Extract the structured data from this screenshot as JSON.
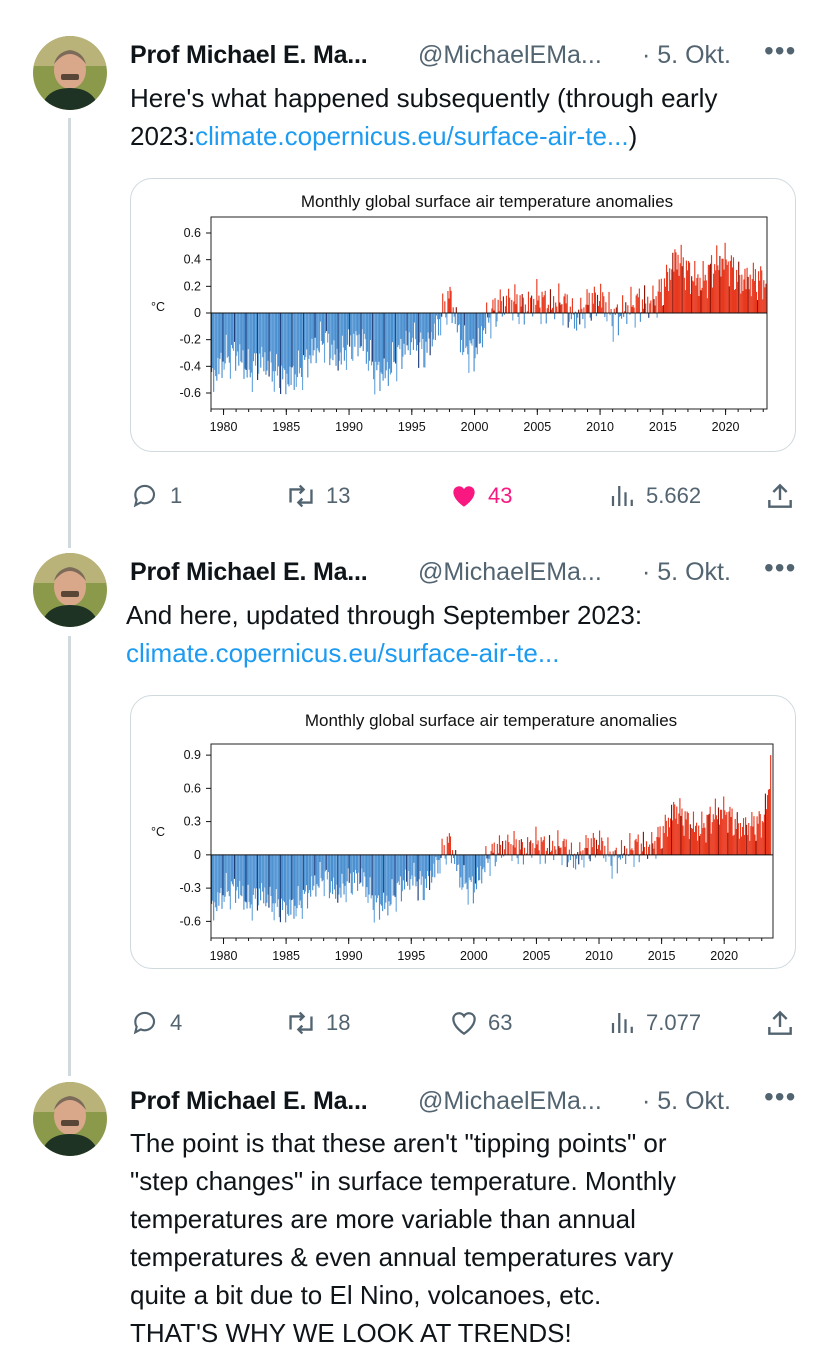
{
  "tweets": [
    {
      "author_name": "Prof Michael E. Ma...",
      "handle": "@MichaelEMa...",
      "date": "· 5. Okt.",
      "more": "•••",
      "text_pre": "Here's what happened subsequently (through early 2023:",
      "link": "climate.copernicus.eu/surface-air-te...",
      "text_post": ")",
      "chart_title": "Monthly global surface air temperature anomalies",
      "stats": {
        "replies": "1",
        "retweets": "13",
        "likes": "43",
        "views": "5.662"
      },
      "liked": true
    },
    {
      "author_name": "Prof Michael E. Ma...",
      "handle": "@MichaelEMa...",
      "date": "· 5. Okt.",
      "more": "•••",
      "text_pre": "And here, updated through September 2023:",
      "link": "climate.copernicus.eu/surface-air-te...",
      "text_post": "",
      "chart_title": "Monthly global surface air temperature anomalies",
      "stats": {
        "replies": "4",
        "retweets": "18",
        "likes": "63",
        "views": "7.077"
      },
      "liked": false
    },
    {
      "author_name": "Prof Michael E. Ma...",
      "handle": "@MichaelEMa...",
      "date": "· 5. Okt.",
      "more": "•••",
      "text_lines": [
        "The point is that these aren't \"tipping points\" or",
        "\"step changes\" in surface temperature. Monthly",
        "temperatures are more variable than annual",
        "temperatures & even annual temperatures vary",
        "quite a bit due to El Nino, volcanoes, etc.",
        "THAT'S WHY WE LOOK AT TRENDS!"
      ]
    }
  ],
  "icons": [
    "reply-icon",
    "retweet-icon",
    "like-icon",
    "views-icon",
    "share-icon",
    "more-icon"
  ],
  "colors": {
    "link": "#1d9bf0",
    "like_active": "#f91880",
    "muted": "#536471",
    "warm_bar": "#e8391f",
    "cool_bar": "#4a8fd0",
    "dark_bar": "#1d3b78"
  },
  "chart_data": [
    {
      "type": "bar",
      "title": "Monthly global surface air temperature anomalies",
      "ylabel": "°C",
      "ylim": [
        -0.72,
        0.72
      ],
      "yticks": [
        -0.6,
        -0.4,
        -0.2,
        0,
        0.2,
        0.4,
        0.6
      ],
      "ytick_labels": [
        "-0.6",
        "-0.4",
        "-0.2",
        "0",
        "0.2",
        "0.4",
        "0.6"
      ],
      "xlim": [
        1979,
        2023.3
      ],
      "xticks": [
        1980,
        1985,
        1990,
        1995,
        2000,
        2005,
        2010,
        2015,
        2020
      ],
      "xtick_labels": [
        "1980",
        "1985",
        "1990",
        "1995",
        "2000",
        "2005",
        "2010",
        "2015",
        "2020"
      ],
      "anchors": {
        "x": [
          1979.0,
          1980.0,
          1981.0,
          1982.0,
          1983.0,
          1984.0,
          1985.0,
          1986.0,
          1987.0,
          1988.0,
          1989.0,
          1990.0,
          1991.0,
          1992.0,
          1993.0,
          1994.0,
          1995.0,
          1996.0,
          1997.0,
          1998.0,
          1999.0,
          2000.0,
          2001.0,
          2002.0,
          2003.0,
          2004.0,
          2005.0,
          2006.0,
          2007.0,
          2008.0,
          2009.0,
          2010.0,
          2011.0,
          2012.0,
          2013.0,
          2014.0,
          2015.0,
          2016.0,
          2017.0,
          2018.0,
          2019.0,
          2020.0,
          2021.0,
          2022.0,
          2023.2
        ],
        "y": [
          -0.5,
          -0.35,
          -0.3,
          -0.45,
          -0.35,
          -0.45,
          -0.5,
          -0.45,
          -0.3,
          -0.2,
          -0.35,
          -0.25,
          -0.2,
          -0.45,
          -0.45,
          -0.3,
          -0.2,
          -0.3,
          -0.1,
          0.12,
          -0.25,
          -0.3,
          -0.05,
          0.06,
          0.08,
          0.04,
          0.1,
          0.05,
          0.08,
          -0.05,
          0.06,
          0.12,
          -0.05,
          0.02,
          0.08,
          0.06,
          0.18,
          0.42,
          0.3,
          0.22,
          0.35,
          0.4,
          0.25,
          0.25,
          0.24
        ]
      }
    },
    {
      "type": "bar",
      "title": "Monthly global surface air temperature anomalies",
      "ylabel": "°C",
      "ylim": [
        -0.75,
        1.0
      ],
      "yticks": [
        -0.6,
        -0.3,
        0,
        0.3,
        0.6,
        0.9
      ],
      "ytick_labels": [
        "-0.6",
        "-0.3",
        "0",
        "0.3",
        "0.6",
        "0.9"
      ],
      "xlim": [
        1979,
        2023.9
      ],
      "xticks": [
        1980,
        1985,
        1990,
        1995,
        2000,
        2005,
        2010,
        2015,
        2020
      ],
      "xtick_labels": [
        "1980",
        "1985",
        "1990",
        "1995",
        "2000",
        "2005",
        "2010",
        "2015",
        "2020"
      ],
      "anchors": {
        "x": [
          1979.0,
          1980.0,
          1981.0,
          1982.0,
          1983.0,
          1984.0,
          1985.0,
          1986.0,
          1987.0,
          1988.0,
          1989.0,
          1990.0,
          1991.0,
          1992.0,
          1993.0,
          1994.0,
          1995.0,
          1996.0,
          1997.0,
          1998.0,
          1999.0,
          2000.0,
          2001.0,
          2002.0,
          2003.0,
          2004.0,
          2005.0,
          2006.0,
          2007.0,
          2008.0,
          2009.0,
          2010.0,
          2011.0,
          2012.0,
          2013.0,
          2014.0,
          2015.0,
          2016.0,
          2017.0,
          2018.0,
          2019.0,
          2020.0,
          2021.0,
          2022.0,
          2023.0,
          2023.5,
          2023.7
        ],
        "y": [
          -0.5,
          -0.35,
          -0.3,
          -0.45,
          -0.35,
          -0.45,
          -0.5,
          -0.45,
          -0.3,
          -0.2,
          -0.35,
          -0.25,
          -0.2,
          -0.45,
          -0.45,
          -0.3,
          -0.2,
          -0.3,
          -0.1,
          0.12,
          -0.25,
          -0.3,
          -0.05,
          0.06,
          0.08,
          0.04,
          0.1,
          0.05,
          0.08,
          -0.05,
          0.06,
          0.12,
          -0.05,
          0.02,
          0.08,
          0.06,
          0.18,
          0.42,
          0.3,
          0.22,
          0.35,
          0.4,
          0.25,
          0.25,
          0.3,
          0.55,
          0.9
        ]
      }
    }
  ]
}
